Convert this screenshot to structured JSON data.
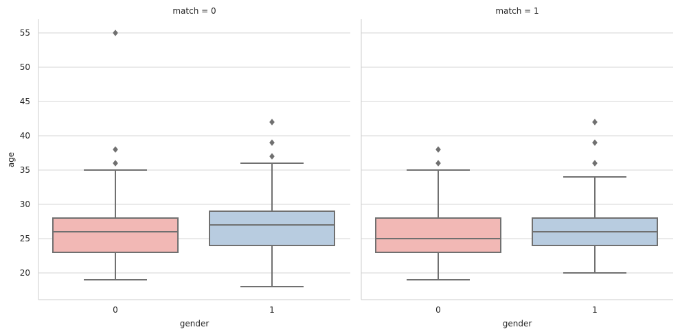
{
  "chart_data": {
    "type": "boxplot",
    "y_label": "age",
    "x_label": "gender",
    "ylim": [
      16,
      57
    ],
    "yticks": [
      20,
      25,
      30,
      35,
      40,
      45,
      50,
      55
    ],
    "grid": "horizontal",
    "categories": [
      "0",
      "1"
    ],
    "colors": {
      "0": "#f2b8b5",
      "1": "#b8cce0",
      "line": "#707070",
      "grid": "#d5d5d5",
      "spine": "#cccccc"
    },
    "panels": [
      {
        "title": "match = 0",
        "boxes": [
          {
            "category": "0",
            "whisker_low": 19,
            "q1": 23,
            "median": 26,
            "q3": 28,
            "whisker_high": 35,
            "outliers": [
              36,
              38,
              55
            ]
          },
          {
            "category": "1",
            "whisker_low": 18,
            "q1": 24,
            "median": 27,
            "q3": 29,
            "whisker_high": 36,
            "outliers": [
              37,
              39,
              42
            ]
          }
        ]
      },
      {
        "title": "match = 1",
        "boxes": [
          {
            "category": "0",
            "whisker_low": 19,
            "q1": 23,
            "median": 25,
            "q3": 28,
            "whisker_high": 35,
            "outliers": [
              36,
              38
            ]
          },
          {
            "category": "1",
            "whisker_low": 20,
            "q1": 24,
            "median": 26,
            "q3": 28,
            "whisker_high": 34,
            "outliers": [
              36,
              39,
              42
            ]
          }
        ]
      }
    ]
  }
}
